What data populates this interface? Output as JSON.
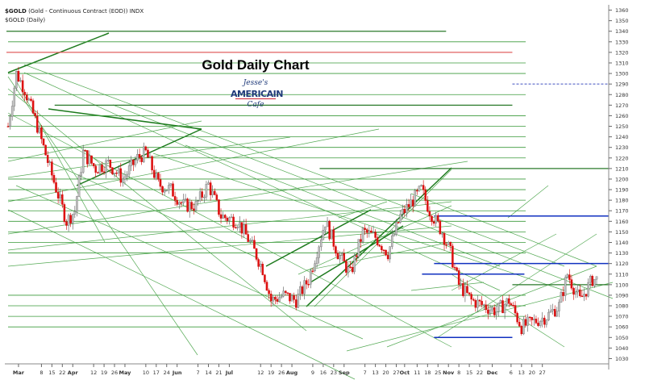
{
  "header": {
    "symbol": "$GOLD",
    "description": "(Gold - Continuous Contract (EOD)) INDX",
    "subline": "$GOLD (Daily)"
  },
  "logo": {
    "top": "Jesse's",
    "middle": "AMERICAIN",
    "bottom": "Cafe"
  },
  "colors": {
    "up_candle": "#c0c0c0",
    "down_candle": "#e01010",
    "trendline": "#2e8b2e",
    "support_line": "#1030c0",
    "resistance_line": "#e06060"
  },
  "chart_data": {
    "type": "candlestick",
    "title": "Gold Daily Chart",
    "ylim": [
      1025,
      1365
    ],
    "y_ticks": [
      1030,
      1040,
      1050,
      1060,
      1070,
      1080,
      1090,
      1100,
      1110,
      1120,
      1130,
      1140,
      1150,
      1160,
      1170,
      1180,
      1190,
      1200,
      1210,
      1220,
      1230,
      1240,
      1250,
      1260,
      1270,
      1280,
      1290,
      1300,
      1310,
      1320,
      1330,
      1340,
      1350,
      1360
    ],
    "x_tick_labels": [
      "Mar",
      "8",
      "15",
      "22",
      "Apr",
      "12",
      "19",
      "26",
      "May",
      "10",
      "17",
      "24",
      "Jun",
      "7",
      "14",
      "21",
      "Jul",
      "12",
      "19",
      "26",
      "Aug",
      "9",
      "16",
      "23",
      "Sep",
      "7",
      "13",
      "20",
      "27",
      "Oct",
      "11",
      "18",
      "25",
      "Nov",
      "8",
      "15",
      "22",
      "Dec",
      "6",
      "13",
      "20",
      "27"
    ],
    "x_tick_index": [
      5,
      16,
      21,
      26,
      31,
      41,
      46,
      51,
      56,
      66,
      71,
      76,
      81,
      91,
      96,
      101,
      106,
      121,
      126,
      131,
      136,
      146,
      151,
      156,
      161,
      171,
      176,
      181,
      186,
      190,
      196,
      201,
      206,
      211,
      216,
      221,
      226,
      232,
      241,
      246,
      251,
      256
    ],
    "major_ticks": [
      "Mar",
      "Apr",
      "May",
      "Jun",
      "Jul",
      "Aug",
      "Sep",
      "Oct",
      "Nov",
      "Dec"
    ],
    "grid": false,
    "close_path": [
      [
        0,
        1250
      ],
      [
        4,
        1300
      ],
      [
        8,
        1285
      ],
      [
        14,
        1250
      ],
      [
        20,
        1210
      ],
      [
        28,
        1160
      ],
      [
        32,
        1170
      ],
      [
        36,
        1225
      ],
      [
        42,
        1210
      ],
      [
        48,
        1215
      ],
      [
        55,
        1200
      ],
      [
        62,
        1220
      ],
      [
        66,
        1225
      ],
      [
        72,
        1195
      ],
      [
        78,
        1190
      ],
      [
        84,
        1175
      ],
      [
        90,
        1175
      ],
      [
        96,
        1195
      ],
      [
        102,
        1165
      ],
      [
        110,
        1160
      ],
      [
        116,
        1140
      ],
      [
        122,
        1115
      ],
      [
        126,
        1085
      ],
      [
        132,
        1090
      ],
      [
        138,
        1085
      ],
      [
        144,
        1105
      ],
      [
        152,
        1160
      ],
      [
        158,
        1130
      ],
      [
        164,
        1110
      ],
      [
        170,
        1150
      ],
      [
        176,
        1145
      ],
      [
        182,
        1130
      ],
      [
        188,
        1165
      ],
      [
        194,
        1180
      ],
      [
        198,
        1190
      ],
      [
        202,
        1170
      ],
      [
        208,
        1150
      ],
      [
        212,
        1130
      ],
      [
        216,
        1100
      ],
      [
        222,
        1085
      ],
      [
        228,
        1080
      ],
      [
        234,
        1075
      ],
      [
        240,
        1085
      ],
      [
        246,
        1060
      ],
      [
        252,
        1065
      ],
      [
        258,
        1070
      ],
      [
        264,
        1080
      ],
      [
        268,
        1110
      ],
      [
        274,
        1085
      ],
      [
        280,
        1105
      ]
    ],
    "horizontal_levels": [
      {
        "value": 1340,
        "color": "green",
        "from": 0.0,
        "to": 0.73
      },
      {
        "value": 1320,
        "color": "red",
        "from": 0.0,
        "to": 0.84
      },
      {
        "value": 1290,
        "color": "blue-dashed",
        "from": 0.84,
        "to": 1.0
      },
      {
        "value": 1270,
        "color": "green",
        "from": 0.08,
        "to": 0.84
      },
      {
        "value": 1210,
        "color": "green",
        "from": 0.52,
        "to": 1.0
      },
      {
        "value": 1165,
        "color": "blue",
        "from": 0.71,
        "to": 1.0
      },
      {
        "value": 1120,
        "color": "blue",
        "from": 0.71,
        "to": 1.0
      },
      {
        "value": 1110,
        "color": "blue",
        "from": 0.69,
        "to": 0.86
      },
      {
        "value": 1100,
        "color": "green",
        "from": 0.84,
        "to": 1.0
      },
      {
        "value": 1050,
        "color": "blue",
        "from": 0.71,
        "to": 0.84
      }
    ]
  }
}
